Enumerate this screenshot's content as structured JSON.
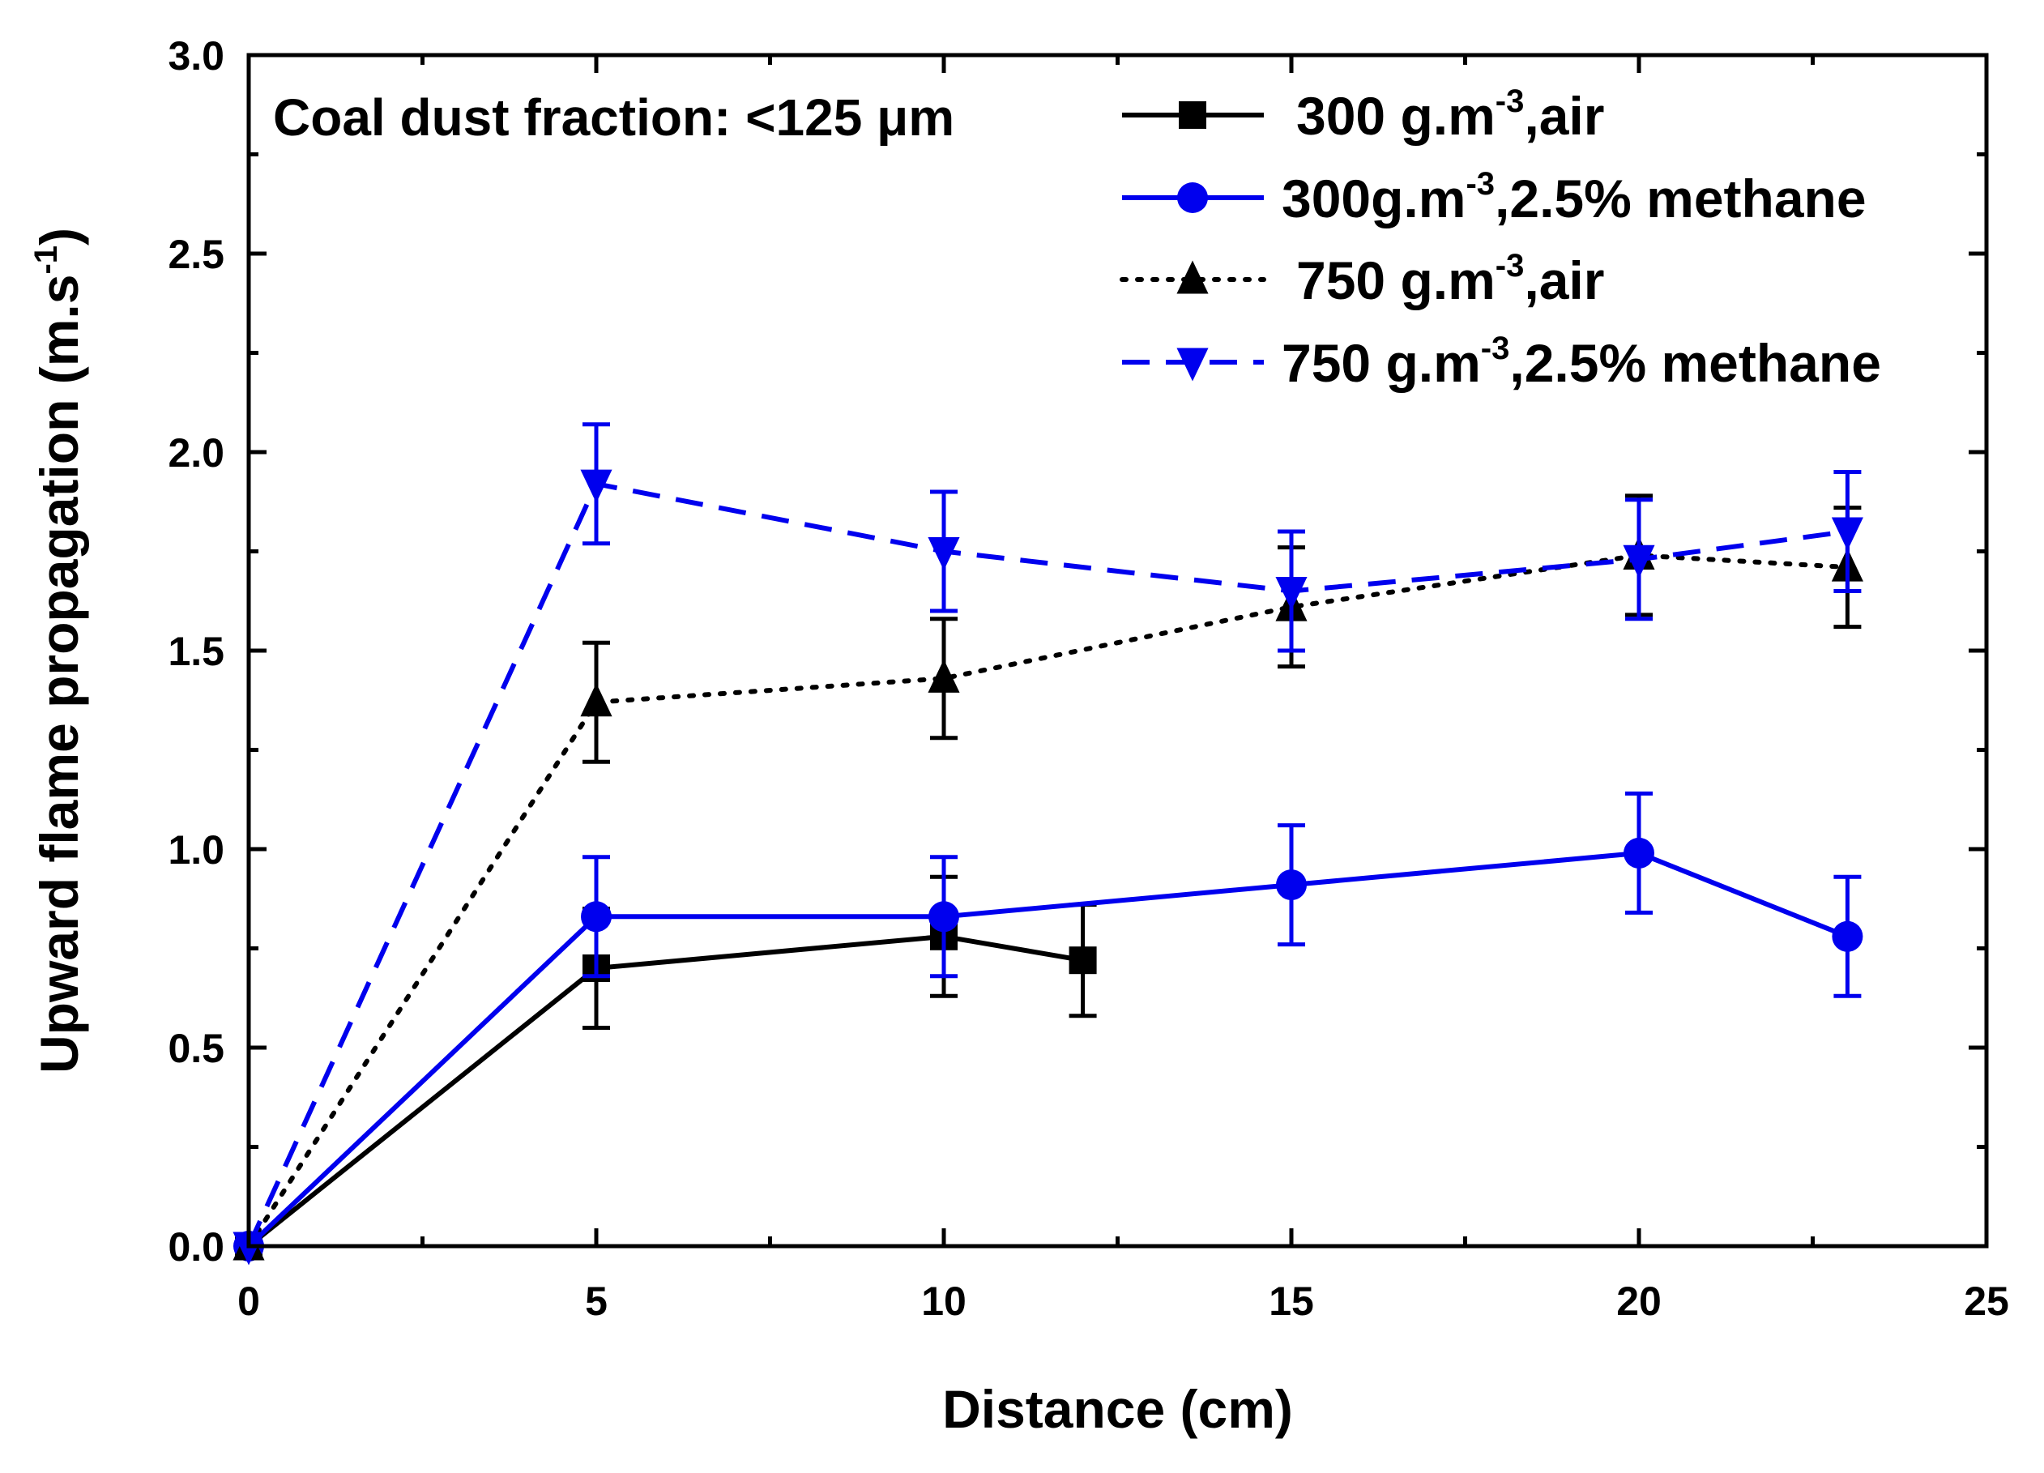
{
  "chart_data": {
    "type": "line",
    "xlabel": "Distance (cm)",
    "ylabel": "Upward flame propagation (m.s",
    "ylabel_sup": "-1",
    "ylabel_end": ")",
    "xlim": [
      0,
      25
    ],
    "ylim": [
      0,
      3.0
    ],
    "xticks": [
      0,
      5,
      10,
      15,
      20,
      25
    ],
    "xtick_labels": [
      "0",
      "5",
      "10",
      "15",
      "20",
      "25"
    ],
    "yticks": [
      0,
      0.5,
      1.0,
      1.5,
      2.0,
      2.5,
      3.0
    ],
    "ytick_labels": [
      "0.0",
      "0.5",
      "1.0",
      "1.5",
      "2.0",
      "2.5",
      "3.0"
    ],
    "grid": false,
    "legend_position": "top-right",
    "annotation": "Coal dust  fraction: <125 μm",
    "series": [
      {
        "name_main": "300 g.m",
        "name_sup": "-3",
        "name_tail": ",air",
        "color": "#000000",
        "dash": "solid",
        "marker": "square",
        "x": [
          0,
          5,
          10,
          12
        ],
        "y": [
          0,
          0.7,
          0.78,
          0.72
        ],
        "error": [
          0,
          0.15,
          0.15,
          0.14
        ]
      },
      {
        "name_main": "300g.m",
        "name_sup": "-3",
        "name_tail": ",2.5% methane",
        "color": "#0000ee",
        "dash": "solid",
        "marker": "circle",
        "x": [
          0,
          5,
          10,
          15,
          20,
          23
        ],
        "y": [
          0,
          0.83,
          0.83,
          0.91,
          0.99,
          0.78
        ],
        "error": [
          0,
          0.15,
          0.15,
          0.15,
          0.15,
          0.15
        ]
      },
      {
        "name_main": "750 g.m",
        "name_sup": "-3",
        "name_tail": ",air",
        "color": "#000000",
        "dash": "dotted",
        "marker": "triangle-up",
        "x": [
          0,
          5,
          10,
          15,
          20,
          23
        ],
        "y": [
          0,
          1.37,
          1.43,
          1.61,
          1.74,
          1.71
        ],
        "error": [
          0,
          0.15,
          0.15,
          0.15,
          0.15,
          0.15
        ]
      },
      {
        "name_main": "750 g.m",
        "name_sup": "-3",
        "name_tail": ",2.5% methane",
        "color": "#0000ee",
        "dash": "dashed",
        "marker": "triangle-down",
        "x": [
          0,
          5,
          10,
          15,
          20,
          23
        ],
        "y": [
          0,
          1.92,
          1.75,
          1.65,
          1.73,
          1.8
        ],
        "error": [
          0,
          0.15,
          0.15,
          0.15,
          0.15,
          0.15
        ]
      }
    ]
  }
}
